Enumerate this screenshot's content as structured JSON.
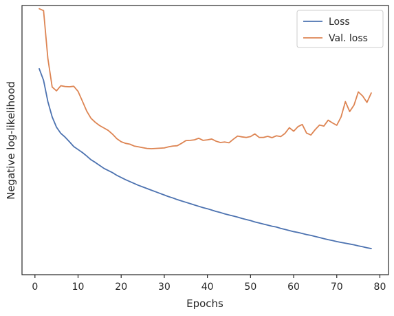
{
  "chart_data": {
    "type": "line",
    "title": "",
    "xlabel": "Epochs",
    "ylabel": "Negative log-likelihood",
    "xlim": [
      -3,
      82
    ],
    "ylim": [
      0,
      1
    ],
    "xticks": [
      0,
      10,
      20,
      30,
      40,
      50,
      60,
      70,
      80
    ],
    "y_tick_labels_shown": false,
    "grid": false,
    "legend_position": "top-right",
    "series": [
      {
        "name": "Loss",
        "color": "#4c72b0",
        "x": [
          1,
          2,
          3,
          4,
          5,
          6,
          7,
          8,
          9,
          10,
          11,
          12,
          13,
          14,
          15,
          16,
          17,
          18,
          19,
          20,
          21,
          22,
          23,
          24,
          25,
          26,
          27,
          28,
          29,
          30,
          31,
          32,
          33,
          34,
          35,
          36,
          37,
          38,
          39,
          40,
          41,
          42,
          43,
          44,
          45,
          46,
          47,
          48,
          49,
          50,
          51,
          52,
          53,
          54,
          55,
          56,
          57,
          58,
          59,
          60,
          61,
          62,
          63,
          64,
          65,
          66,
          67,
          68,
          69,
          70,
          71,
          72,
          73,
          74,
          75,
          76,
          77,
          78
        ],
        "values": [
          0.765,
          0.722,
          0.643,
          0.586,
          0.548,
          0.525,
          0.511,
          0.494,
          0.476,
          0.465,
          0.454,
          0.441,
          0.427,
          0.417,
          0.406,
          0.395,
          0.387,
          0.379,
          0.369,
          0.361,
          0.353,
          0.346,
          0.339,
          0.332,
          0.326,
          0.32,
          0.314,
          0.308,
          0.302,
          0.296,
          0.29,
          0.285,
          0.279,
          0.274,
          0.269,
          0.264,
          0.259,
          0.254,
          0.249,
          0.245,
          0.24,
          0.235,
          0.231,
          0.226,
          0.222,
          0.218,
          0.214,
          0.209,
          0.205,
          0.201,
          0.196,
          0.192,
          0.188,
          0.184,
          0.18,
          0.177,
          0.172,
          0.168,
          0.164,
          0.16,
          0.157,
          0.153,
          0.149,
          0.146,
          0.142,
          0.138,
          0.134,
          0.13,
          0.127,
          0.123,
          0.12,
          0.117,
          0.114,
          0.111,
          0.107,
          0.104,
          0.1,
          0.097
        ]
      },
      {
        "name": "Val. loss",
        "color": "#dd8452",
        "x": [
          1,
          2,
          3,
          4,
          5,
          6,
          7,
          8,
          9,
          10,
          11,
          12,
          13,
          14,
          15,
          16,
          17,
          18,
          19,
          20,
          21,
          22,
          23,
          24,
          25,
          26,
          27,
          28,
          29,
          30,
          31,
          32,
          33,
          34,
          35,
          36,
          37,
          38,
          39,
          40,
          41,
          42,
          43,
          44,
          45,
          46,
          47,
          48,
          49,
          50,
          51,
          52,
          53,
          54,
          55,
          56,
          57,
          58,
          59,
          60,
          61,
          62,
          63,
          64,
          65,
          66,
          67,
          68,
          69,
          70,
          71,
          72,
          73,
          74,
          75,
          76,
          77,
          78
        ],
        "values": [
          0.988,
          0.981,
          0.803,
          0.697,
          0.683,
          0.702,
          0.699,
          0.698,
          0.7,
          0.681,
          0.645,
          0.608,
          0.581,
          0.566,
          0.554,
          0.545,
          0.536,
          0.522,
          0.505,
          0.494,
          0.488,
          0.485,
          0.478,
          0.475,
          0.472,
          0.469,
          0.468,
          0.469,
          0.47,
          0.471,
          0.475,
          0.478,
          0.479,
          0.488,
          0.498,
          0.499,
          0.501,
          0.507,
          0.499,
          0.501,
          0.504,
          0.496,
          0.491,
          0.493,
          0.49,
          0.503,
          0.515,
          0.512,
          0.51,
          0.513,
          0.523,
          0.51,
          0.51,
          0.514,
          0.509,
          0.516,
          0.513,
          0.525,
          0.546,
          0.533,
          0.55,
          0.558,
          0.526,
          0.519,
          0.539,
          0.556,
          0.552,
          0.574,
          0.564,
          0.555,
          0.586,
          0.643,
          0.606,
          0.63,
          0.679,
          0.664,
          0.64,
          0.675
        ]
      }
    ]
  }
}
